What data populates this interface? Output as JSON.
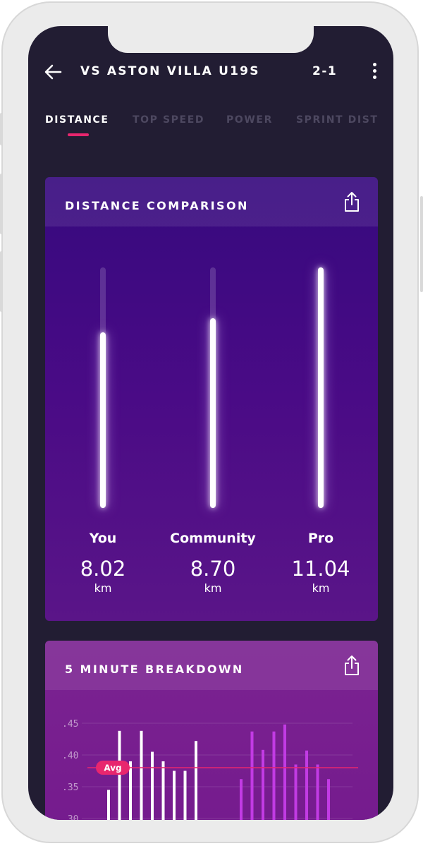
{
  "header": {
    "title": "VS ASTON VILLA U19S",
    "score": "2-1"
  },
  "tabs": [
    {
      "label": "DISTANCE",
      "active": true
    },
    {
      "label": "TOP SPEED",
      "active": false
    },
    {
      "label": "POWER",
      "active": false
    },
    {
      "label": "SPRINT DIST",
      "active": false
    }
  ],
  "distance_card": {
    "title": "DISTANCE COMPARISON",
    "columns": [
      {
        "label": "You",
        "value": "8.02",
        "unit": "km",
        "fill_fraction": 0.73
      },
      {
        "label": "Community",
        "value": "8.70",
        "unit": "km",
        "fill_fraction": 0.79
      },
      {
        "label": "Pro",
        "value": "11.04",
        "unit": "km",
        "fill_fraction": 1.0
      }
    ]
  },
  "breakdown_card": {
    "title": "5 MINUTE BREAKDOWN",
    "avg_label": "Avg",
    "avg_value": 0.38,
    "chart_data": {
      "type": "bar",
      "y_ticks": [
        ".45",
        ".40",
        ".35",
        ".30"
      ],
      "ylim": [
        0.3,
        0.46
      ],
      "series": [
        {
          "values": [
            0.345,
            0.438,
            0.39,
            0.438,
            0.405,
            0.39,
            0.375,
            0.375,
            0.422
          ]
        },
        {
          "values": [
            0.362,
            0.437,
            0.408,
            0.437,
            0.448,
            0.385,
            0.407,
            0.385,
            0.362
          ]
        }
      ]
    }
  },
  "colors": {
    "background": "#221d33",
    "accent": "#e8266e",
    "bar_white": "#ffffff",
    "bar_magenta": "#c23be4"
  }
}
